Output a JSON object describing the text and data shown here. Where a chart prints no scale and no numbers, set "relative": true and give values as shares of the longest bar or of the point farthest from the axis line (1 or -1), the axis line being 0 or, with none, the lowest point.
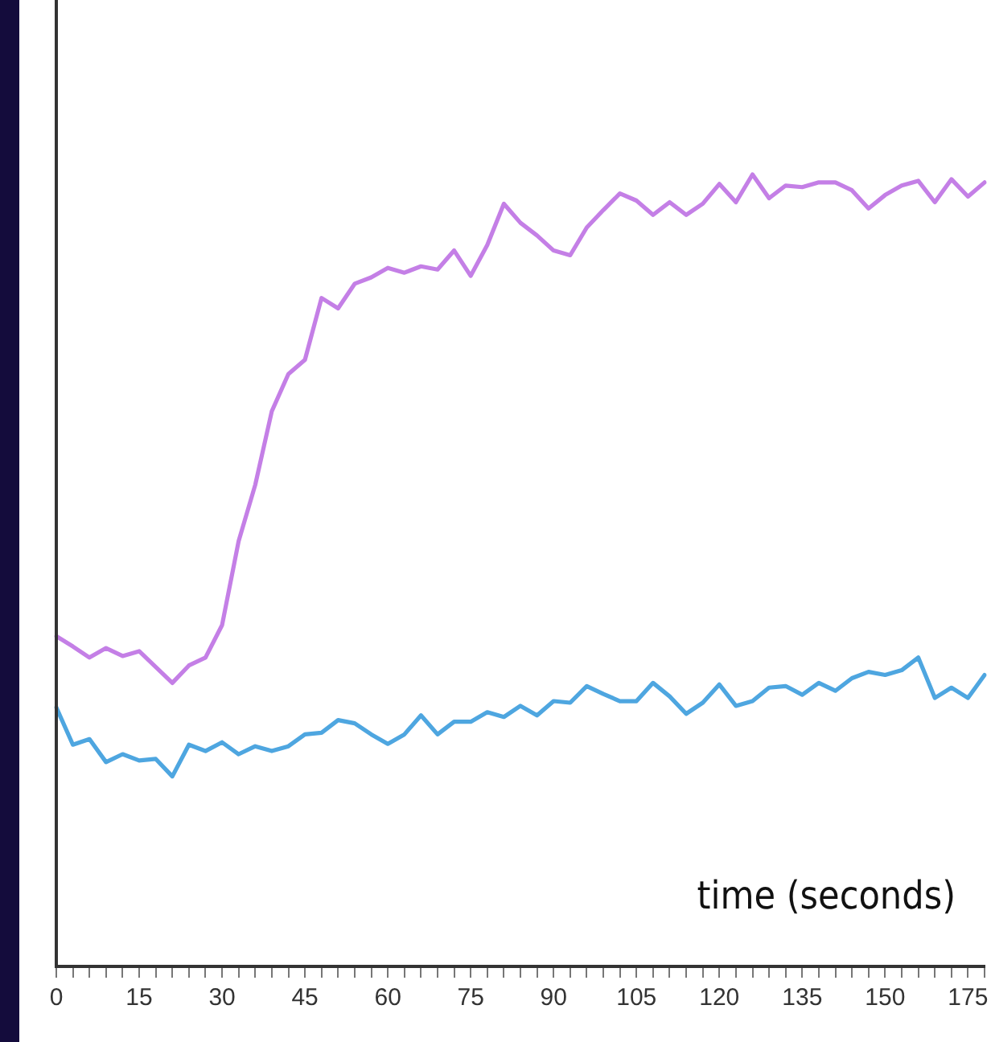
{
  "chart_data": {
    "type": "line",
    "relative": true,
    "xlabel": "time (seconds)",
    "categories": [
      "0",
      null,
      null,
      null,
      null,
      "15",
      null,
      null,
      null,
      null,
      "30",
      null,
      null,
      null,
      null,
      "45",
      null,
      null,
      null,
      null,
      "60",
      null,
      null,
      null,
      null,
      "75",
      null,
      null,
      null,
      null,
      "90",
      null,
      null,
      null,
      null,
      "105",
      null,
      null,
      null,
      null,
      "120",
      null,
      null,
      null,
      null,
      "135",
      null,
      null,
      null,
      null,
      "150",
      null,
      null,
      null,
      null,
      "175",
      null
    ],
    "grid": false,
    "legend": false,
    "marker": "none",
    "line_style": "solid",
    "series": [
      {
        "color": "#c47fe6",
        "values": [
          0.417,
          0.404,
          0.39,
          0.402,
          0.392,
          0.398,
          0.378,
          0.358,
          0.38,
          0.39,
          0.431,
          0.537,
          0.608,
          0.701,
          0.748,
          0.766,
          0.844,
          0.831,
          0.862,
          0.87,
          0.882,
          0.876,
          0.884,
          0.88,
          0.904,
          0.872,
          0.911,
          0.963,
          0.939,
          0.923,
          0.904,
          0.898,
          0.933,
          0.955,
          0.976,
          0.967,
          0.949,
          0.965,
          0.949,
          0.963,
          0.988,
          0.965,
          1.0,
          0.97,
          0.986,
          0.984,
          0.99,
          0.99,
          0.98,
          0.957,
          0.974,
          0.986,
          0.992,
          0.965,
          0.994,
          0.972,
          0.99
        ]
      },
      {
        "color": "#4ea6e0",
        "values": [
          0.327,
          0.28,
          0.287,
          0.258,
          0.268,
          0.26,
          0.262,
          0.24,
          0.28,
          0.272,
          0.283,
          0.268,
          0.278,
          0.272,
          0.278,
          0.293,
          0.295,
          0.311,
          0.307,
          0.293,
          0.281,
          0.293,
          0.317,
          0.293,
          0.309,
          0.309,
          0.321,
          0.315,
          0.329,
          0.317,
          0.335,
          0.333,
          0.354,
          0.344,
          0.335,
          0.335,
          0.358,
          0.341,
          0.319,
          0.333,
          0.356,
          0.329,
          0.335,
          0.352,
          0.354,
          0.343,
          0.358,
          0.348,
          0.364,
          0.372,
          0.368,
          0.374,
          0.39,
          0.339,
          0.352,
          0.339,
          0.368
        ]
      }
    ]
  }
}
